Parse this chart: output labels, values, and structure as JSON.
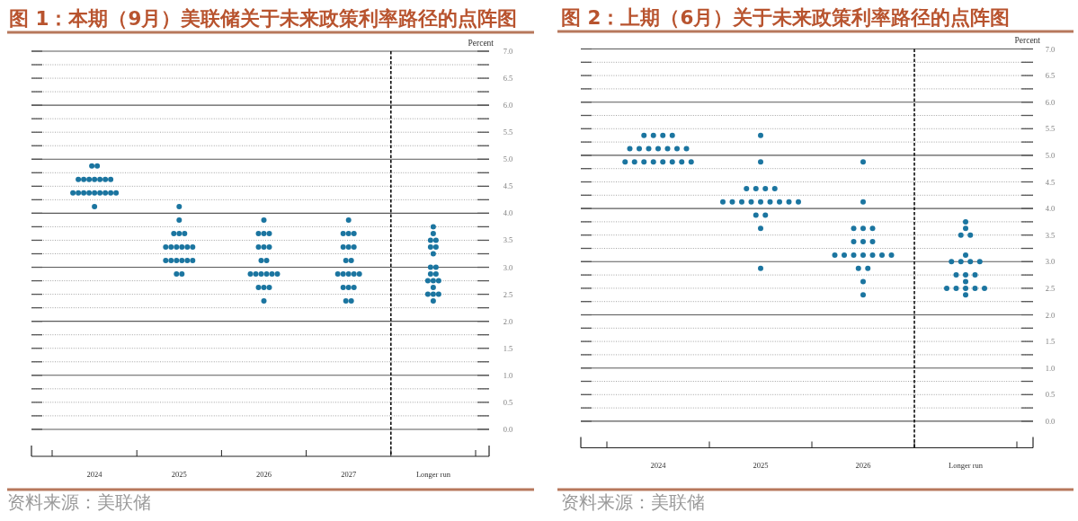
{
  "chart_data": [
    {
      "type": "scatter",
      "title": "图 1：本期（9月）美联储关于未来政策利率路径的点阵图",
      "ylabel": "Percent",
      "categories": [
        "2024",
        "2025",
        "2026",
        "2027",
        "Longer run"
      ],
      "series": [
        {
          "color": "#1b75a0",
          "values": [
            4.875,
            4.125,
            3.875,
            3.875,
            3.75
          ]
        },
        {
          "color": "#1b75a0",
          "values": [
            4.875,
            3.875,
            3.625,
            3.625,
            3.625
          ]
        },
        {
          "color": "#1b75a0",
          "values": [
            4.625,
            3.625,
            3.625,
            3.625,
            3.5
          ]
        },
        {
          "color": "#1b75a0",
          "values": [
            4.625,
            3.625,
            3.625,
            3.625,
            3.5
          ]
        },
        {
          "color": "#1b75a0",
          "values": [
            4.625,
            3.625,
            3.375,
            3.375,
            3.375
          ]
        },
        {
          "color": "#1b75a0",
          "values": [
            4.625,
            3.375,
            3.375,
            3.375,
            3.375
          ]
        },
        {
          "color": "#1b75a0",
          "values": [
            4.625,
            3.375,
            3.375,
            3.375,
            3.25
          ]
        },
        {
          "color": "#1b75a0",
          "values": [
            4.625,
            3.375,
            3.125,
            3.125,
            3.0
          ]
        },
        {
          "color": "#1b75a0",
          "values": [
            4.625,
            3.375,
            3.125,
            3.125,
            3.0
          ]
        },
        {
          "color": "#1b75a0",
          "values": [
            4.375,
            3.375,
            2.875,
            2.875,
            2.875
          ]
        },
        {
          "color": "#1b75a0",
          "values": [
            4.375,
            3.375,
            2.875,
            2.875,
            2.875
          ]
        },
        {
          "color": "#1b75a0",
          "values": [
            4.375,
            3.125,
            2.875,
            2.875,
            2.75
          ]
        },
        {
          "color": "#1b75a0",
          "values": [
            4.375,
            3.125,
            2.875,
            2.875,
            2.75
          ]
        },
        {
          "color": "#1b75a0",
          "values": [
            4.375,
            3.125,
            2.875,
            2.875,
            2.75
          ]
        },
        {
          "color": "#1b75a0",
          "values": [
            4.375,
            3.125,
            2.875,
            2.625,
            2.625
          ]
        },
        {
          "color": "#1b75a0",
          "values": [
            4.375,
            3.125,
            2.625,
            2.625,
            2.5
          ]
        },
        {
          "color": "#1b75a0",
          "values": [
            4.375,
            3.125,
            2.625,
            2.625,
            2.5
          ]
        },
        {
          "color": "#1b75a0",
          "values": [
            4.375,
            2.875,
            2.625,
            2.375,
            2.5
          ]
        },
        {
          "color": "#1b75a0",
          "values": [
            4.125,
            2.875,
            2.375,
            2.375,
            2.375
          ]
        }
      ],
      "ylim": [
        -0.5,
        7
      ],
      "yticks": [
        {
          "value": 0,
          "label": "0.0"
        },
        {
          "value": 0.25,
          "label": null
        },
        {
          "value": 0.5,
          "label": "0.5"
        },
        {
          "value": 0.75,
          "label": null
        },
        {
          "value": 1,
          "label": "1.0"
        },
        {
          "value": 1.25,
          "label": null
        },
        {
          "value": 1.5,
          "label": "1.5"
        },
        {
          "value": 1.75,
          "label": null
        },
        {
          "value": 2,
          "label": "2.0"
        },
        {
          "value": 2.25,
          "label": null
        },
        {
          "value": 2.5,
          "label": "2.5"
        },
        {
          "value": 2.75,
          "label": null
        },
        {
          "value": 3,
          "label": "3.0"
        },
        {
          "value": 3.25,
          "label": null
        },
        {
          "value": 3.5,
          "label": "3.5"
        },
        {
          "value": 3.75,
          "label": null
        },
        {
          "value": 4,
          "label": "4.0"
        },
        {
          "value": 4.25,
          "label": null
        },
        {
          "value": 4.5,
          "label": "4.5"
        },
        {
          "value": 4.75,
          "label": null
        },
        {
          "value": 5,
          "label": "5.0"
        },
        {
          "value": 5.25,
          "label": null
        },
        {
          "value": 5.5,
          "label": "5.5"
        },
        {
          "value": 5.75,
          "label": null
        },
        {
          "value": 6,
          "label": "6.0"
        },
        {
          "value": 6.25,
          "label": null
        },
        {
          "value": 6.5,
          "label": "6.5"
        },
        {
          "value": 6.75,
          "label": null
        },
        {
          "value": 7,
          "label": "7.0"
        }
      ],
      "grid": "y",
      "marker": "circle",
      "annotations": [
        "资料来源：美联储"
      ]
    },
    {
      "type": "scatter",
      "title": "图 2：上期（6月）关于未来政策利率路径的点阵图",
      "ylabel": "Percent",
      "categories": [
        "2024",
        "2025",
        "2026",
        "Longer run"
      ],
      "series": [
        {
          "color": "#1b75a0",
          "values": [
            5.375,
            5.375,
            4.875,
            3.75
          ]
        },
        {
          "color": "#1b75a0",
          "values": [
            5.375,
            4.875,
            4.125,
            3.625
          ]
        },
        {
          "color": "#1b75a0",
          "values": [
            5.375,
            4.375,
            3.625,
            3.5
          ]
        },
        {
          "color": "#1b75a0",
          "values": [
            5.375,
            4.375,
            3.625,
            3.5
          ]
        },
        {
          "color": "#1b75a0",
          "values": [
            5.125,
            4.375,
            3.625,
            3.125
          ]
        },
        {
          "color": "#1b75a0",
          "values": [
            5.125,
            4.375,
            3.375,
            3.0
          ]
        },
        {
          "color": "#1b75a0",
          "values": [
            5.125,
            4.125,
            3.375,
            3.0
          ]
        },
        {
          "color": "#1b75a0",
          "values": [
            5.125,
            4.125,
            3.375,
            3.0
          ]
        },
        {
          "color": "#1b75a0",
          "values": [
            5.125,
            4.125,
            3.125,
            3.0
          ]
        },
        {
          "color": "#1b75a0",
          "values": [
            5.125,
            4.125,
            3.125,
            2.75
          ]
        },
        {
          "color": "#1b75a0",
          "values": [
            5.125,
            4.125,
            3.125,
            2.75
          ]
        },
        {
          "color": "#1b75a0",
          "values": [
            4.875,
            4.125,
            3.125,
            2.75
          ]
        },
        {
          "color": "#1b75a0",
          "values": [
            4.875,
            4.125,
            3.125,
            2.625
          ]
        },
        {
          "color": "#1b75a0",
          "values": [
            4.875,
            4.125,
            3.125,
            2.5
          ]
        },
        {
          "color": "#1b75a0",
          "values": [
            4.875,
            4.125,
            3.125,
            2.5
          ]
        },
        {
          "color": "#1b75a0",
          "values": [
            4.875,
            3.875,
            2.875,
            2.5
          ]
        },
        {
          "color": "#1b75a0",
          "values": [
            4.875,
            3.875,
            2.875,
            2.5
          ]
        },
        {
          "color": "#1b75a0",
          "values": [
            4.875,
            3.625,
            2.625,
            2.5
          ]
        },
        {
          "color": "#1b75a0",
          "values": [
            4.875,
            2.875,
            2.375,
            2.375
          ]
        }
      ],
      "ylim": [
        -0.5,
        7
      ],
      "yticks": [
        {
          "value": 0,
          "label": "0.0"
        },
        {
          "value": 0.25,
          "label": null
        },
        {
          "value": 0.5,
          "label": "0.5"
        },
        {
          "value": 0.75,
          "label": null
        },
        {
          "value": 1,
          "label": "1.0"
        },
        {
          "value": 1.25,
          "label": null
        },
        {
          "value": 1.5,
          "label": "1.5"
        },
        {
          "value": 1.75,
          "label": null
        },
        {
          "value": 2,
          "label": "2.0"
        },
        {
          "value": 2.25,
          "label": null
        },
        {
          "value": 2.5,
          "label": "2.5"
        },
        {
          "value": 2.75,
          "label": null
        },
        {
          "value": 3,
          "label": "3.0"
        },
        {
          "value": 3.25,
          "label": null
        },
        {
          "value": 3.5,
          "label": "3.5"
        },
        {
          "value": 3.75,
          "label": null
        },
        {
          "value": 4,
          "label": "4.0"
        },
        {
          "value": 4.25,
          "label": null
        },
        {
          "value": 4.5,
          "label": "4.5"
        },
        {
          "value": 4.75,
          "label": null
        },
        {
          "value": 5,
          "label": "5.0"
        },
        {
          "value": 5.25,
          "label": null
        },
        {
          "value": 5.5,
          "label": "5.5"
        },
        {
          "value": 5.75,
          "label": null
        },
        {
          "value": 6,
          "label": "6.0"
        },
        {
          "value": 6.25,
          "label": null
        },
        {
          "value": 6.5,
          "label": "6.5"
        },
        {
          "value": 6.75,
          "label": null
        },
        {
          "value": 7,
          "label": "7.0"
        }
      ],
      "grid": "y",
      "marker": "circle",
      "annotations": [
        "资料来源：美联储"
      ]
    }
  ]
}
